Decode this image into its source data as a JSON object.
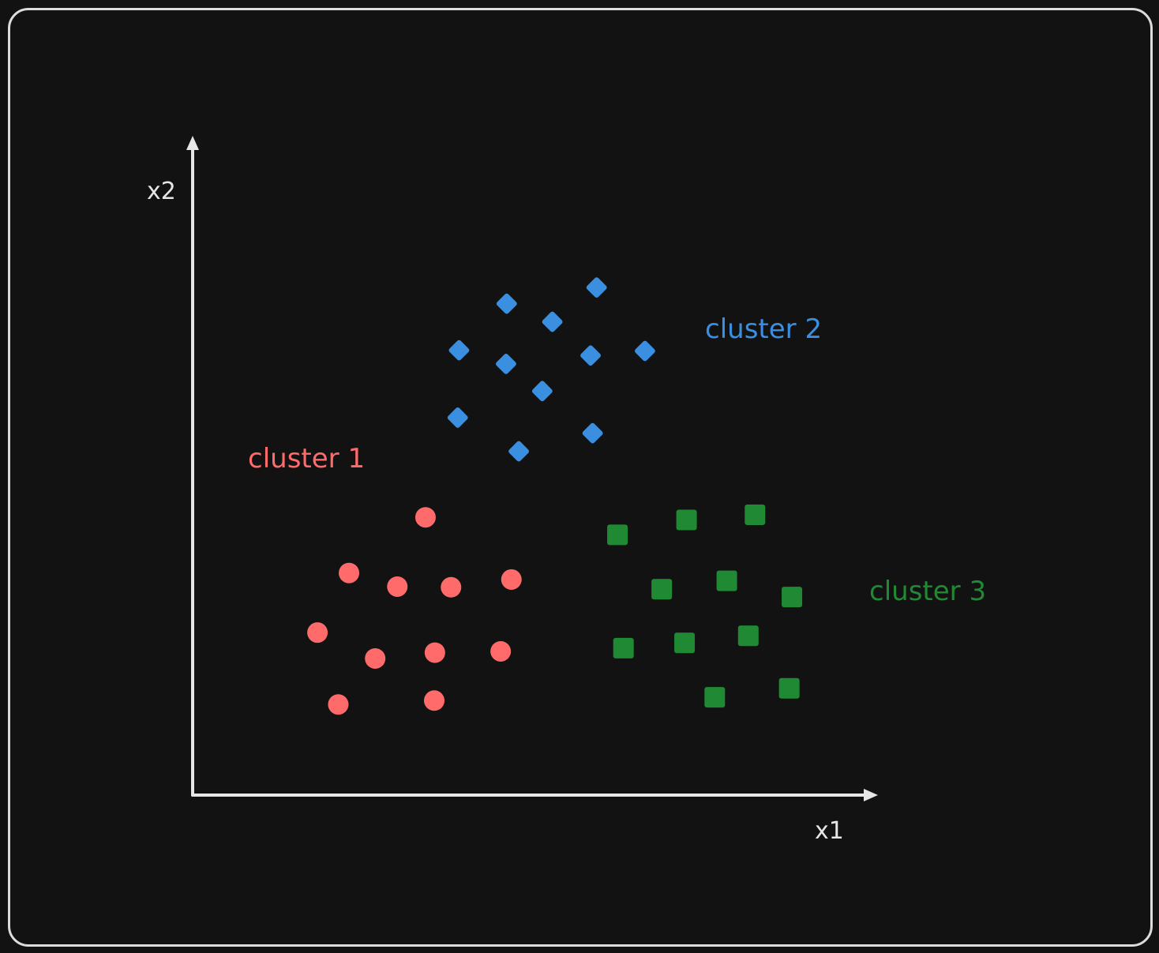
{
  "chart_data": {
    "type": "scatter",
    "title": "",
    "xlabel": "x1",
    "ylabel": "x2",
    "xlim": [
      0,
      100
    ],
    "ylim": [
      0,
      100
    ],
    "grid": false,
    "series": [
      {
        "name": "cluster 1",
        "marker": "circle",
        "color": "#ff6b6b",
        "points": [
          [
            34.7,
            42.9
          ],
          [
            23.3,
            34.3
          ],
          [
            30.5,
            32.2
          ],
          [
            38.5,
            32.1
          ],
          [
            47.5,
            33.3
          ],
          [
            18.6,
            25.1
          ],
          [
            27.2,
            21.1
          ],
          [
            36.1,
            22.0
          ],
          [
            45.9,
            22.2
          ],
          [
            21.7,
            14.0
          ],
          [
            36.0,
            14.6
          ]
        ]
      },
      {
        "name": "cluster 2",
        "marker": "diamond",
        "color": "#3b8fe0",
        "points": [
          [
            46.8,
            75.9
          ],
          [
            60.2,
            78.4
          ],
          [
            53.6,
            73.1
          ],
          [
            39.7,
            68.7
          ],
          [
            59.3,
            67.9
          ],
          [
            46.7,
            66.6
          ],
          [
            67.4,
            68.6
          ],
          [
            52.1,
            62.4
          ],
          [
            39.5,
            58.3
          ],
          [
            59.6,
            55.9
          ],
          [
            48.6,
            53.1
          ]
        ]
      },
      {
        "name": "cluster 3",
        "marker": "square",
        "color": "#1f8a33",
        "points": [
          [
            63.3,
            40.2
          ],
          [
            73.6,
            42.5
          ],
          [
            83.8,
            43.3
          ],
          [
            69.9,
            31.8
          ],
          [
            79.6,
            33.1
          ],
          [
            89.3,
            30.6
          ],
          [
            64.2,
            22.7
          ],
          [
            73.3,
            23.5
          ],
          [
            82.8,
            24.6
          ],
          [
            77.8,
            15.1
          ],
          [
            88.9,
            16.5
          ]
        ]
      }
    ]
  }
}
